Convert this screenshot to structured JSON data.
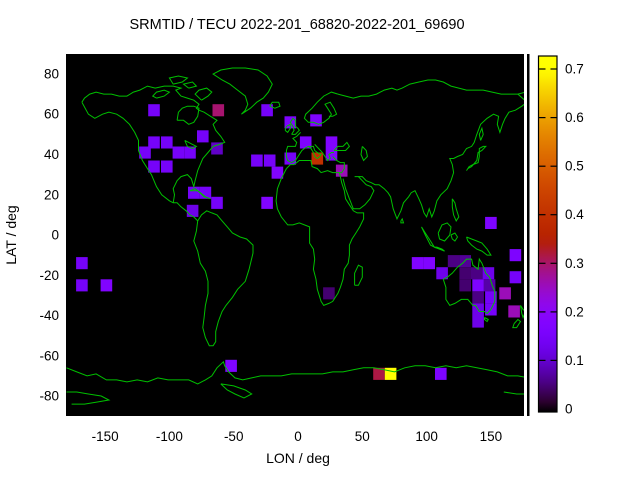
{
  "chart_data": {
    "type": "heatmap",
    "title": "SRMTID / TECU 2022-201_68820-2022-201_69690",
    "xlabel": "LON / deg",
    "ylabel": "LAT / deg",
    "xlim": [
      -180,
      180
    ],
    "ylim": [
      -90,
      90
    ],
    "xticks": [
      -150,
      -100,
      -50,
      0,
      50,
      100,
      150
    ],
    "yticks": [
      80,
      60,
      40,
      20,
      0,
      -20,
      -40,
      -60,
      -80
    ],
    "grid": false,
    "legend": null,
    "map_background": "#000000",
    "coastline_color": "#00c000",
    "colorbar": {
      "position": "right",
      "min": 0,
      "max": 0.727,
      "tick_labels": [
        "0",
        "0.1",
        "0.2",
        "0.3",
        "0.4",
        "0.5",
        "0.6",
        "0.7"
      ],
      "tick_values": [
        0,
        0.1,
        0.2,
        0.3,
        0.4,
        0.5,
        0.6,
        0.7
      ],
      "palette": "gnuplot-pm3d black-violet-magenta-red-orange-yellow"
    },
    "cell_size_deg": {
      "lon": 9,
      "lat": 6
    },
    "cells_columns": [
      "lon",
      "lat",
      "tecu"
    ],
    "cells": [
      [
        -112,
        62,
        0.15
      ],
      [
        -62,
        62,
        0.3
      ],
      [
        -24,
        62,
        0.15
      ],
      [
        -6,
        56,
        0.17
      ],
      [
        14,
        57,
        0.17
      ],
      [
        -74,
        49,
        0.15
      ],
      [
        -63,
        43,
        0.1
      ],
      [
        -119,
        41,
        0.15
      ],
      [
        -112,
        46,
        0.15
      ],
      [
        -102,
        46,
        0.15
      ],
      [
        -93,
        41,
        0.15
      ],
      [
        -84,
        41,
        0.15
      ],
      [
        -112,
        34,
        0.15
      ],
      [
        -102,
        34,
        0.15
      ],
      [
        6,
        46,
        0.17
      ],
      [
        26,
        46,
        0.18
      ],
      [
        26,
        40,
        0.18
      ],
      [
        15,
        38,
        0.4
      ],
      [
        -6,
        38,
        0.15
      ],
      [
        34,
        32,
        0.26
      ],
      [
        -32,
        37,
        0.15
      ],
      [
        -22,
        37,
        0.15
      ],
      [
        -16,
        31,
        0.18
      ],
      [
        -24,
        16,
        0.18
      ],
      [
        -81,
        21,
        0.15
      ],
      [
        -72,
        21,
        0.15
      ],
      [
        -63,
        16,
        0.15
      ],
      [
        -82,
        12,
        0.13
      ],
      [
        150,
        6,
        0.17
      ],
      [
        -168,
        -14,
        0.15
      ],
      [
        -168,
        -25,
        0.15
      ],
      [
        -149,
        -25,
        0.18
      ],
      [
        93,
        -14,
        0.18
      ],
      [
        102,
        -14,
        0.18
      ],
      [
        121,
        -13,
        0.06
      ],
      [
        130,
        -13,
        0.07
      ],
      [
        169,
        -10,
        0.17
      ],
      [
        169,
        -21,
        0.15
      ],
      [
        112,
        -19,
        0.13
      ],
      [
        130,
        -19,
        0.05
      ],
      [
        139,
        -19,
        0.06
      ],
      [
        148,
        -19,
        0.13
      ],
      [
        130,
        -25,
        0.05
      ],
      [
        140,
        -25,
        0.17
      ],
      [
        149,
        -25,
        0.08
      ],
      [
        161,
        -29,
        0.26
      ],
      [
        24,
        -29,
        0.05
      ],
      [
        140,
        -31,
        0.06
      ],
      [
        150,
        -31,
        0.15
      ],
      [
        140,
        -37,
        0.13
      ],
      [
        150,
        -37,
        0.15
      ],
      [
        168,
        -38,
        0.26
      ],
      [
        140,
        -43,
        0.13
      ],
      [
        -52,
        -65,
        0.17
      ],
      [
        63,
        -69,
        0.32
      ],
      [
        72,
        -69,
        0.72
      ],
      [
        111,
        -69,
        0.17
      ]
    ]
  }
}
